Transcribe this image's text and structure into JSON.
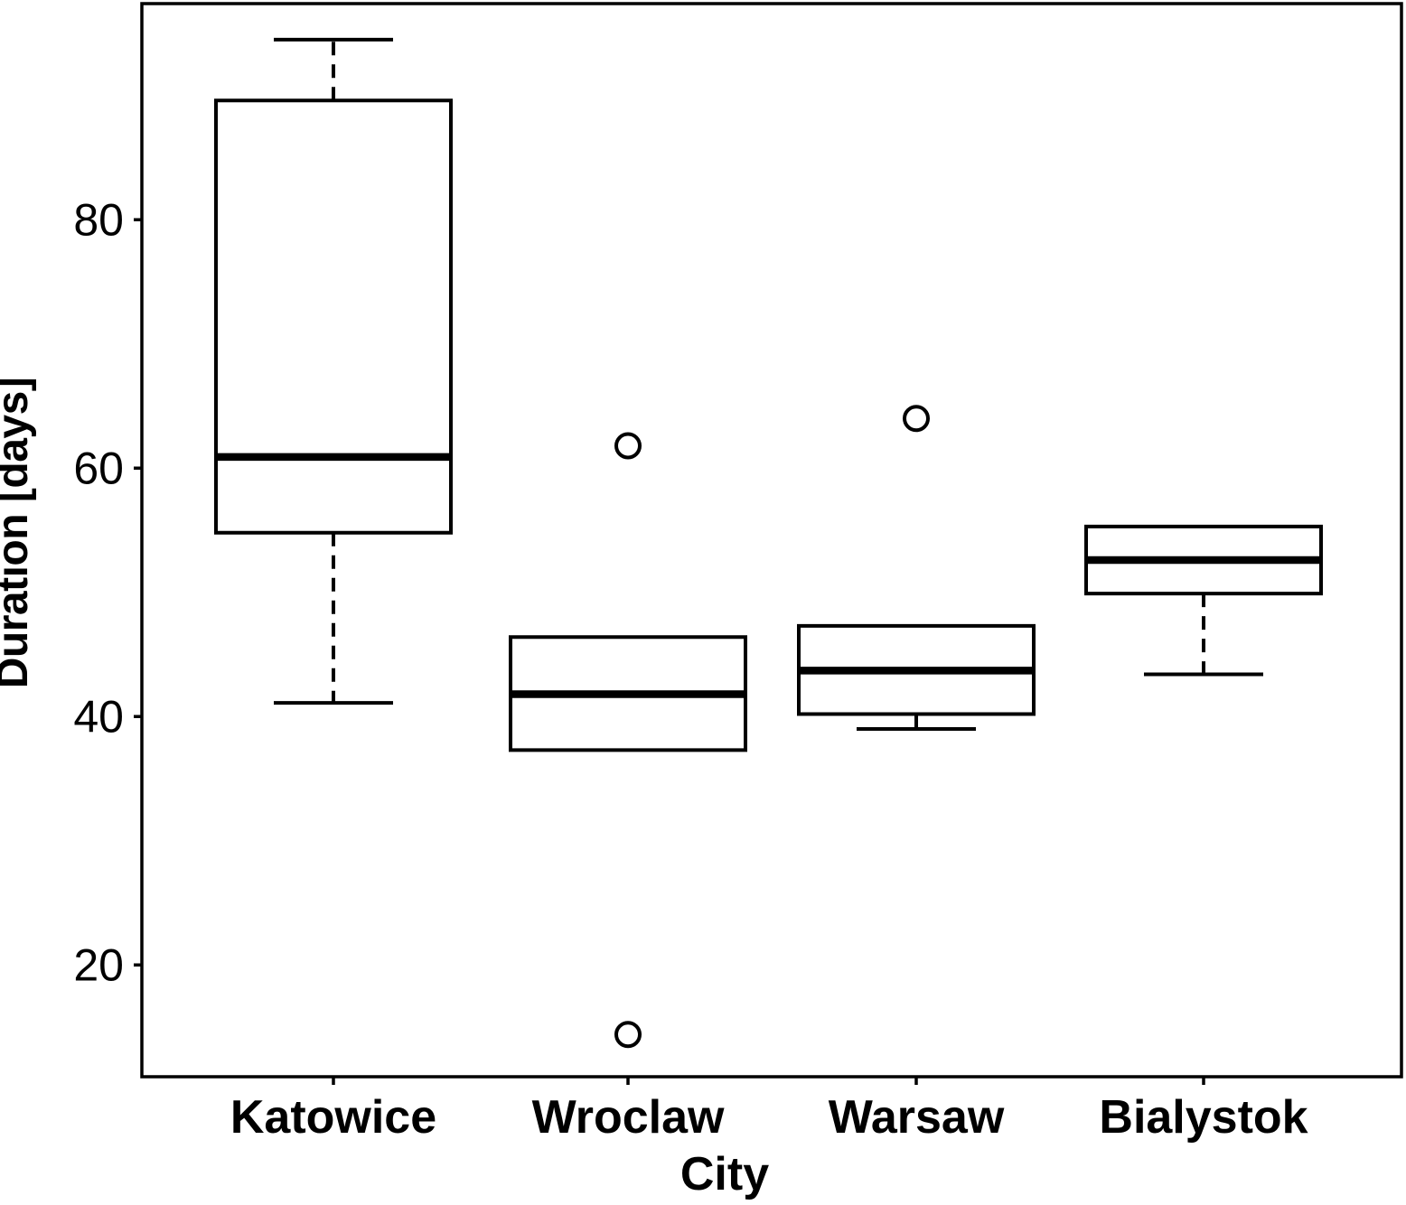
{
  "chart_data": {
    "type": "boxplot",
    "title": "",
    "xlabel": "City",
    "ylabel": "Duration [days]",
    "categories": [
      "Katowice",
      "Wroclaw",
      "Warsaw",
      "Bialystok"
    ],
    "yticks": [
      20,
      40,
      60,
      80
    ],
    "ylim": [
      11.0,
      97.4
    ],
    "grid": false,
    "boxes": [
      {
        "label": "Katowice",
        "whislo": 41.1,
        "q1": 54.8,
        "med": 60.9,
        "q3": 89.6,
        "whishi": 94.5,
        "fliers": []
      },
      {
        "label": "Wroclaw",
        "whislo": 37.3,
        "q1": 37.3,
        "med": 41.8,
        "q3": 46.4,
        "whishi": 46.4,
        "fliers": [
          61.8,
          14.4
        ]
      },
      {
        "label": "Warsaw",
        "whislo": 39.0,
        "q1": 40.2,
        "med": 43.7,
        "q3": 47.3,
        "whishi": 47.3,
        "fliers": [
          64.0
        ]
      },
      {
        "label": "Bialystok",
        "whislo": 43.4,
        "q1": 49.9,
        "med": 52.6,
        "q3": 55.3,
        "whishi": 55.3,
        "fliers": []
      }
    ],
    "colors": {
      "line": "#000000",
      "box_fill": "#ffffff",
      "background": "#ffffff"
    }
  }
}
